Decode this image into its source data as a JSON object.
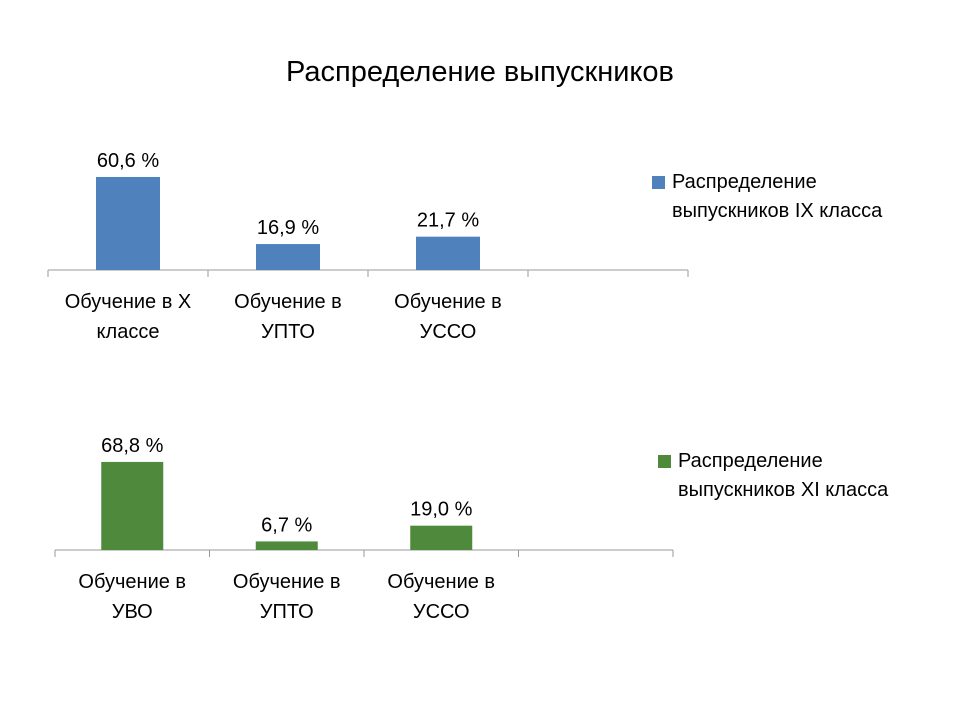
{
  "title": "Распределение выпускников",
  "chart_data": [
    {
      "type": "bar",
      "categories": [
        [
          "Обучение в X",
          "классе"
        ],
        [
          "Обучение в",
          "УПТО"
        ],
        [
          "Обучение в",
          "УССО"
        ],
        [
          ""
        ]
      ],
      "series": [
        {
          "name": "Распределение выпускников IX класса",
          "values": [
            60.6,
            16.9,
            21.7,
            null
          ],
          "color": "#4f81bd"
        }
      ],
      "data_labels": [
        "60,6 %",
        "16,9 %",
        "21,7 %",
        ""
      ],
      "legend": [
        "Распределение",
        "выпускников IX класса"
      ],
      "legend_position": "right"
    },
    {
      "type": "bar",
      "categories": [
        [
          "Обучение в",
          "УВО"
        ],
        [
          "Обучение в",
          "УПТО"
        ],
        [
          "Обучение в",
          "УССО"
        ],
        [
          ""
        ]
      ],
      "series": [
        {
          "name": "Распределение выпускников XI класса",
          "values": [
            68.8,
            6.7,
            19.0,
            null
          ],
          "color": "#4f8a3c"
        }
      ],
      "data_labels": [
        "68,8 %",
        "6,7 %",
        "19,0 %",
        ""
      ],
      "legend": [
        "Распределение",
        "выпускников XI класса"
      ],
      "legend_position": "right"
    }
  ]
}
